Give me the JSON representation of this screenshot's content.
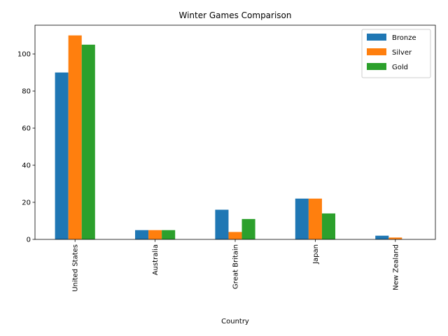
{
  "chart_data": {
    "type": "bar",
    "title": "Winter Games Comparison",
    "xlabel": "Country",
    "ylabel": "",
    "categories": [
      "United States",
      "Australia",
      "Great Britain",
      "Japan",
      "New Zealand"
    ],
    "series": [
      {
        "name": "Bronze",
        "color": "#1f77b4",
        "values": [
          90,
          5,
          16,
          22,
          2
        ]
      },
      {
        "name": "Silver",
        "color": "#ff7f0e",
        "values": [
          110,
          5,
          4,
          22,
          1
        ]
      },
      {
        "name": "Gold",
        "color": "#2ca02c",
        "values": [
          105,
          5,
          11,
          14,
          0
        ]
      }
    ],
    "ylim": [
      0,
      115.5
    ],
    "yticks": [
      0,
      20,
      40,
      60,
      80,
      100
    ],
    "legend": "top-right",
    "grid": false
  }
}
